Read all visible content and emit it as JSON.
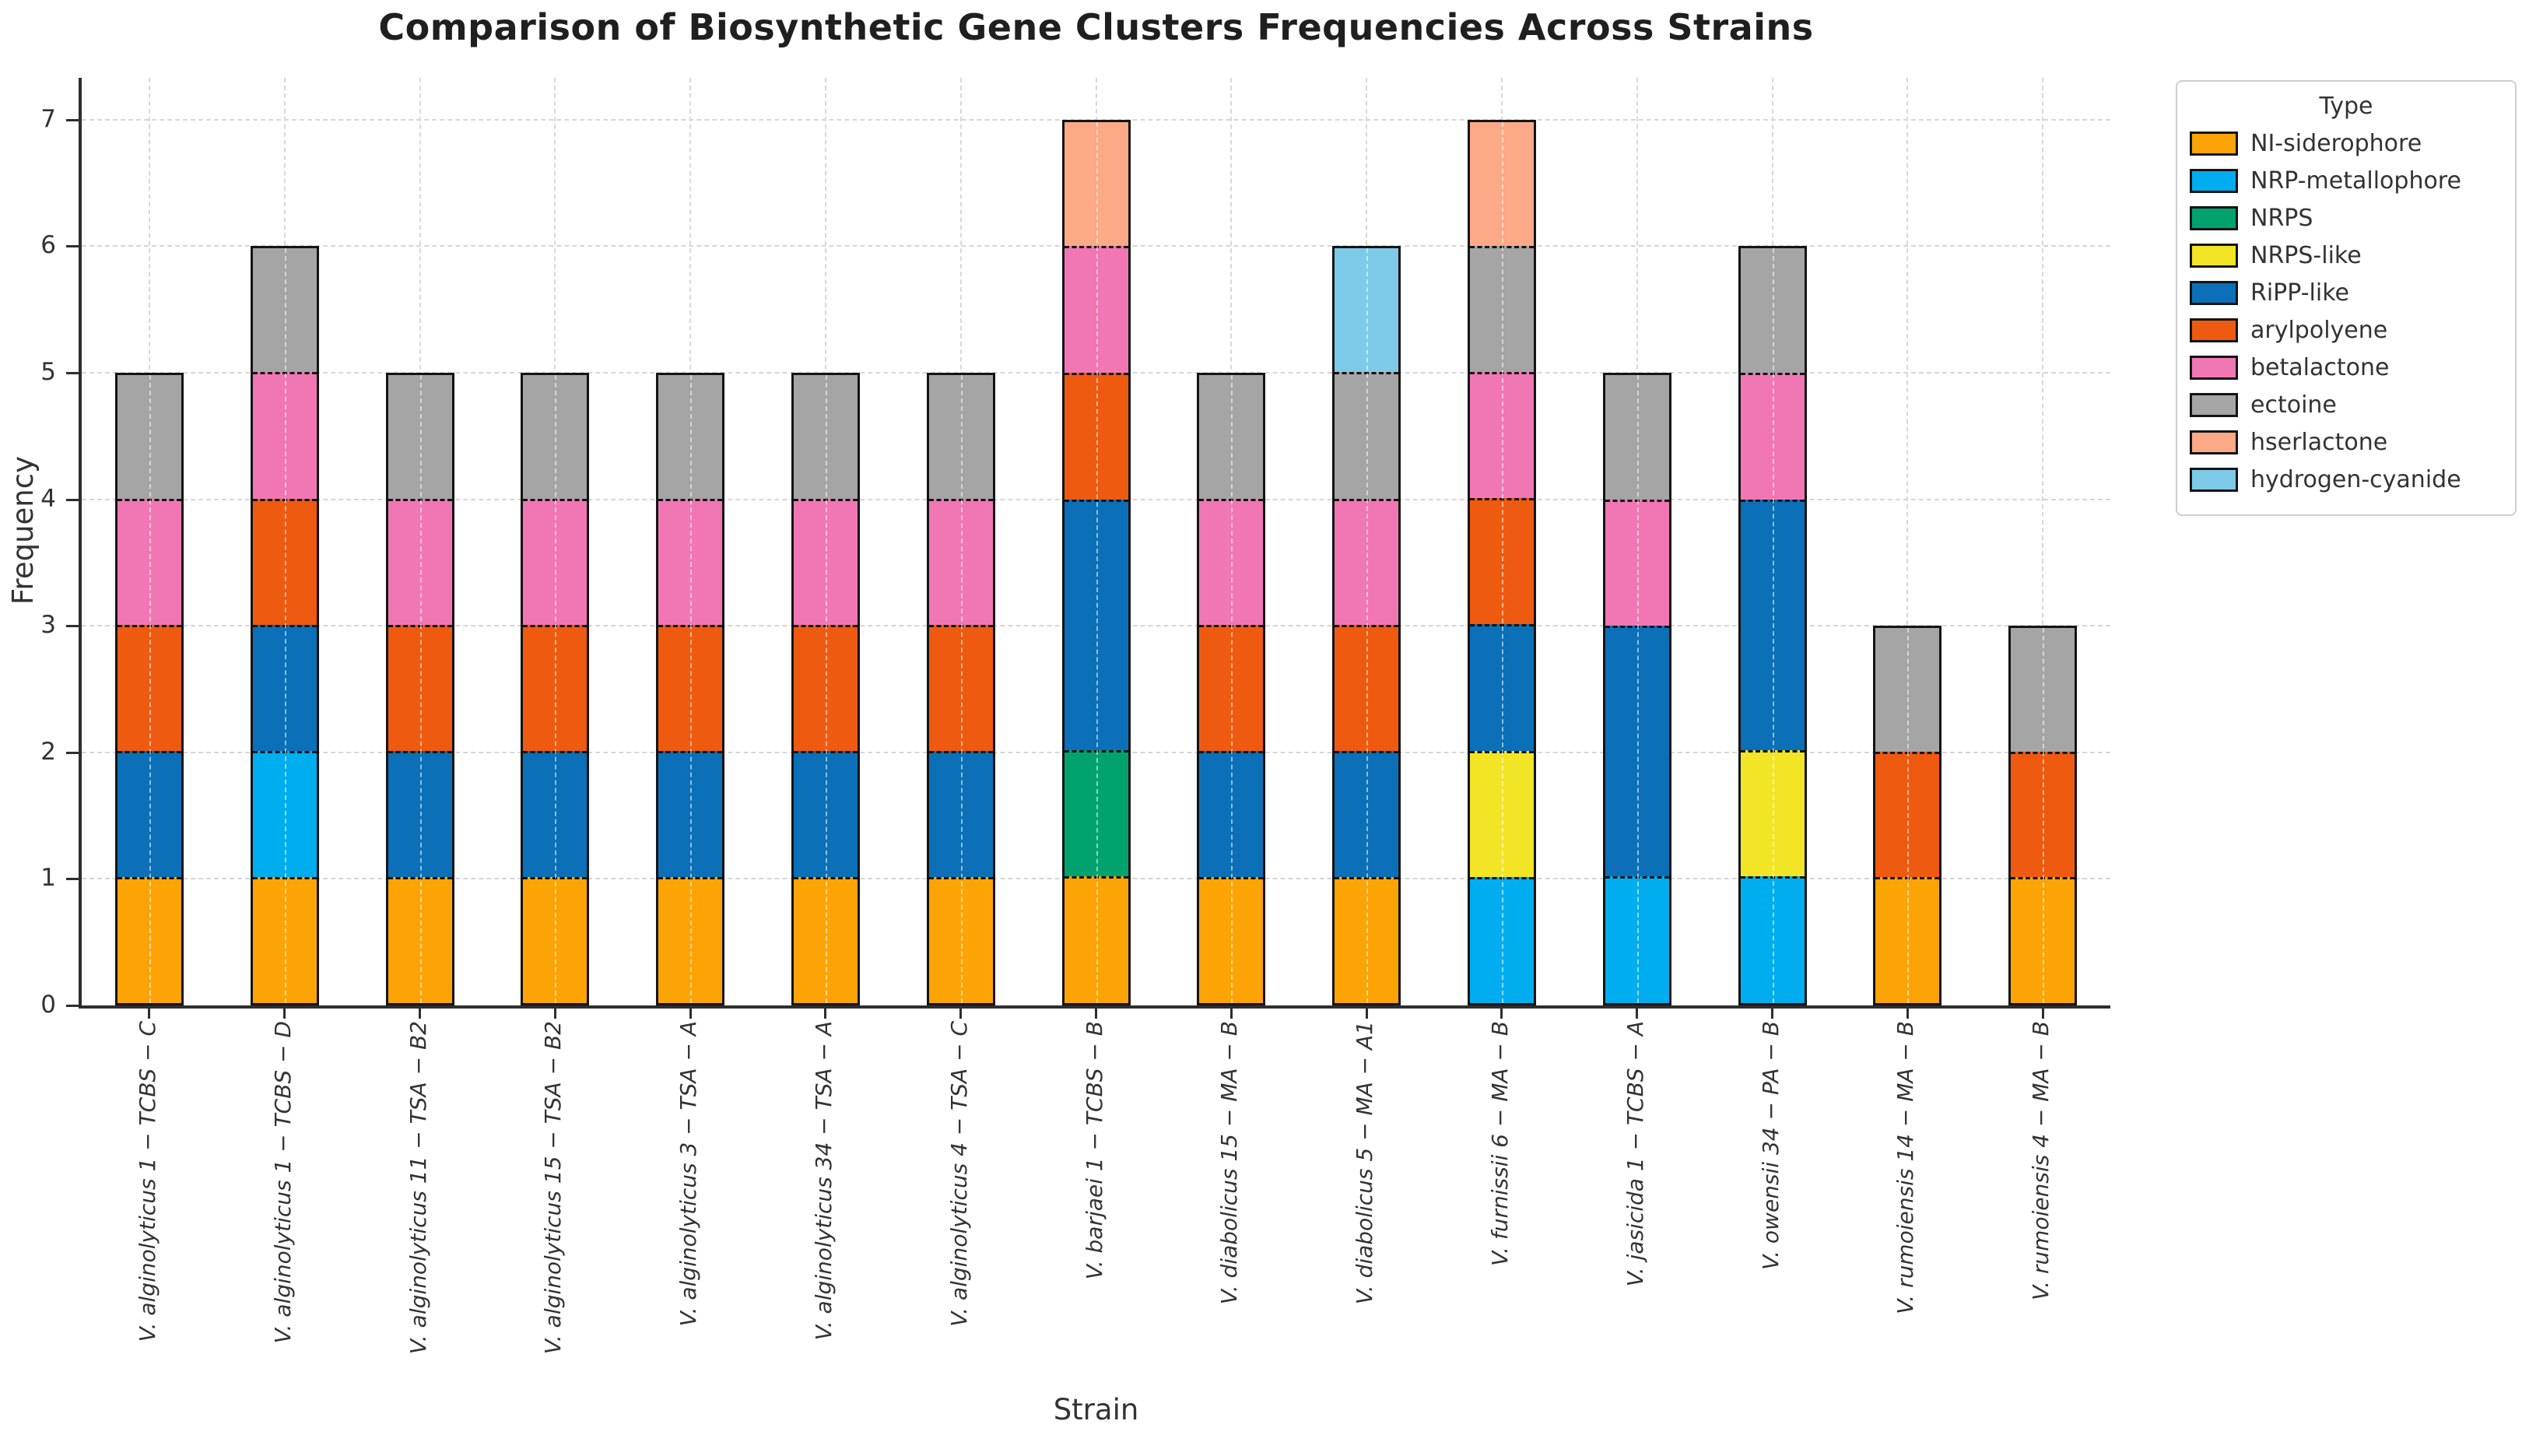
{
  "title": "Comparison of Biosynthetic Gene Clusters Frequencies Across Strains",
  "axes": {
    "x_label": "Strain",
    "y_label": "Frequency",
    "y_ticks": [
      0,
      1,
      2,
      3,
      4,
      5,
      6,
      7
    ]
  },
  "legend": {
    "title": "Type"
  },
  "chart_data": {
    "type": "bar",
    "stacked": true,
    "title": "Comparison of Biosynthetic Gene Clusters Frequencies Across Strains",
    "xlabel": "Strain",
    "ylabel": "Frequency",
    "ylim": [
      0,
      7.33
    ],
    "grid": true,
    "legend_position": "upper right outside",
    "categories": [
      "V. alginolyticus 1 − TCBS − C",
      "V. alginolyticus 1 − TCBS − D",
      "V. alginolyticus 11 − TSA − B2",
      "V. alginolyticus 15 − TSA − B2",
      "V. alginolyticus 3 − TSA − A",
      "V. alginolyticus 34 − TSA − A",
      "V. alginolyticus 4 − TSA − C",
      "V. barjaei 1 − TCBS − B",
      "V. diabolicus 15 − MA − B",
      "V. diabolicus 5 − MA − A1",
      "V. furnissii 6 − MA − B",
      "V. jasicida 1 − TCBS − A",
      "V. owensii 34 − PA − B",
      "V. rumoiensis 14 − MA − B",
      "V. rumoiensis 4 − MA − B"
    ],
    "series": [
      {
        "name": "NI-siderophore",
        "color": "#FCA406",
        "values": [
          1,
          1,
          1,
          1,
          1,
          1,
          1,
          1,
          1,
          1,
          0,
          0,
          0,
          1,
          1
        ]
      },
      {
        "name": "NRP-metallophore",
        "color": "#00AEEF",
        "values": [
          0,
          1,
          0,
          0,
          0,
          0,
          0,
          0,
          0,
          0,
          1,
          1,
          1,
          0,
          0
        ]
      },
      {
        "name": "NRPS",
        "color": "#00A36E",
        "values": [
          0,
          0,
          0,
          0,
          0,
          0,
          0,
          1,
          0,
          0,
          0,
          0,
          0,
          0,
          0
        ]
      },
      {
        "name": "NRPS-like",
        "color": "#F2E525",
        "values": [
          0,
          0,
          0,
          0,
          0,
          0,
          0,
          0,
          0,
          0,
          1,
          0,
          1,
          0,
          0
        ]
      },
      {
        "name": "RiPP-like",
        "color": "#0B70B8",
        "values": [
          1,
          1,
          1,
          1,
          1,
          1,
          1,
          2,
          1,
          1,
          1,
          2,
          2,
          0,
          0
        ]
      },
      {
        "name": "arylpolyene",
        "color": "#EE5A10",
        "values": [
          1,
          1,
          1,
          1,
          1,
          1,
          1,
          1,
          1,
          1,
          1,
          0,
          0,
          1,
          1
        ]
      },
      {
        "name": "betalactone",
        "color": "#F177B4",
        "values": [
          1,
          1,
          1,
          1,
          1,
          1,
          1,
          1,
          1,
          1,
          1,
          1,
          1,
          0,
          0
        ]
      },
      {
        "name": "ectoine",
        "color": "#A5A5A5",
        "values": [
          1,
          1,
          1,
          1,
          1,
          1,
          1,
          0,
          1,
          1,
          1,
          1,
          1,
          1,
          1
        ]
      },
      {
        "name": "hserlactone",
        "color": "#FBA987",
        "values": [
          0,
          0,
          0,
          0,
          0,
          0,
          0,
          1,
          0,
          0,
          1,
          0,
          0,
          0,
          0
        ]
      },
      {
        "name": "hydrogen-cyanide",
        "color": "#7DCBE8",
        "values": [
          0,
          0,
          0,
          0,
          0,
          0,
          0,
          0,
          0,
          1,
          0,
          0,
          0,
          0,
          0
        ]
      }
    ],
    "totals": [
      5,
      6,
      5,
      5,
      5,
      5,
      5,
      7,
      5,
      6,
      7,
      5,
      6,
      3,
      3
    ]
  }
}
